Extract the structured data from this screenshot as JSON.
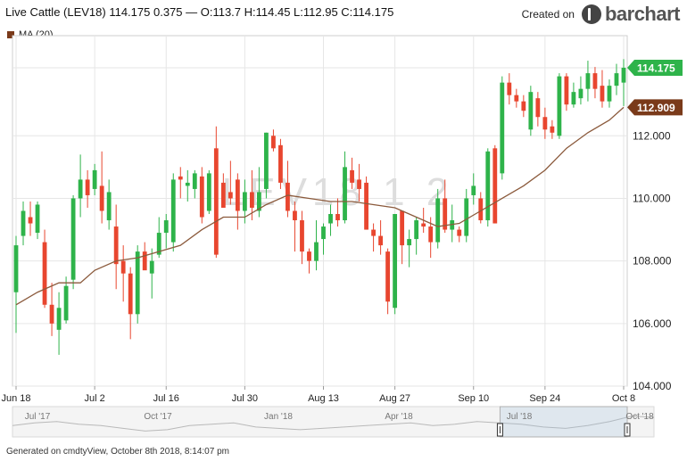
{
  "header": {
    "title": "Live Cattle (LEV18) 114.175 0.375 — O:113.7 H:114.45 L:112.95 C:114.175",
    "brand_prefix": "Created on",
    "brand_name": "barchart"
  },
  "legend": {
    "label": "MA (20)",
    "color": "#7a3a1a"
  },
  "watermark": "LEV18 1 2",
  "footer": "Generated on cmdtyView, October 8th 2018, 8:14:07 pm",
  "colors": {
    "up": "#2eb34a",
    "down": "#e8462f",
    "ma": "#8b5a3c",
    "grid": "#e6e6e6"
  },
  "chart_data": {
    "type": "candlestick",
    "x_ticks": [
      "Jun 18",
      "Jul 2",
      "Jul 16",
      "Jul 30",
      "Aug 13",
      "Aug 27",
      "Sep 10",
      "Sep 24",
      "Oct 8"
    ],
    "y_ticks": [
      "104.000",
      "106.000",
      "108.000",
      "110.000",
      "112.000",
      "114.175"
    ],
    "ylim": [
      104,
      115.2
    ],
    "price_labels": [
      {
        "value": 114.175,
        "text": "114.175",
        "color": "#2eb34a"
      },
      {
        "value": 112.909,
        "text": "112.909",
        "color": "#7a3a1a"
      }
    ],
    "candles": [
      {
        "o": 107.0,
        "h": 108.8,
        "l": 105.7,
        "c": 108.5
      },
      {
        "o": 108.8,
        "h": 109.9,
        "l": 108.5,
        "c": 109.6
      },
      {
        "o": 109.4,
        "h": 109.9,
        "l": 108.8,
        "c": 109.2
      },
      {
        "o": 108.9,
        "h": 109.9,
        "l": 108.7,
        "c": 109.8
      },
      {
        "o": 108.6,
        "h": 109.0,
        "l": 106.5,
        "c": 106.6
      },
      {
        "o": 106.6,
        "h": 107.3,
        "l": 105.6,
        "c": 106.0
      },
      {
        "o": 105.8,
        "h": 107.0,
        "l": 105.0,
        "c": 106.5
      },
      {
        "o": 106.1,
        "h": 107.5,
        "l": 106.0,
        "c": 107.2
      },
      {
        "o": 107.4,
        "h": 110.1,
        "l": 107.1,
        "c": 110.0
      },
      {
        "o": 110.0,
        "h": 111.4,
        "l": 109.4,
        "c": 110.6
      },
      {
        "o": 110.6,
        "h": 110.9,
        "l": 109.7,
        "c": 110.1
      },
      {
        "o": 110.3,
        "h": 111.1,
        "l": 110.1,
        "c": 110.9
      },
      {
        "o": 110.4,
        "h": 111.5,
        "l": 109.2,
        "c": 109.6
      },
      {
        "o": 109.3,
        "h": 110.6,
        "l": 109.0,
        "c": 110.2
      },
      {
        "o": 109.1,
        "h": 109.8,
        "l": 107.1,
        "c": 107.9
      },
      {
        "o": 108.0,
        "h": 108.5,
        "l": 106.7,
        "c": 107.6
      },
      {
        "o": 107.6,
        "h": 107.8,
        "l": 105.5,
        "c": 106.3
      },
      {
        "o": 106.3,
        "h": 108.5,
        "l": 106.0,
        "c": 108.3
      },
      {
        "o": 108.3,
        "h": 108.6,
        "l": 107.8,
        "c": 107.7
      },
      {
        "o": 107.6,
        "h": 108.4,
        "l": 106.8,
        "c": 108.0
      },
      {
        "o": 108.2,
        "h": 109.4,
        "l": 108.1,
        "c": 108.9
      },
      {
        "o": 108.9,
        "h": 109.5,
        "l": 108.4,
        "c": 109.3
      },
      {
        "o": 108.6,
        "h": 110.8,
        "l": 108.3,
        "c": 110.6
      },
      {
        "o": 110.7,
        "h": 111.0,
        "l": 110.0,
        "c": 110.6
      },
      {
        "o": 110.4,
        "h": 110.9,
        "l": 109.9,
        "c": 110.5
      },
      {
        "o": 110.3,
        "h": 110.9,
        "l": 110.0,
        "c": 110.8
      },
      {
        "o": 110.7,
        "h": 111.0,
        "l": 109.2,
        "c": 109.4
      },
      {
        "o": 109.6,
        "h": 110.9,
        "l": 109.5,
        "c": 110.8
      },
      {
        "o": 111.6,
        "h": 112.3,
        "l": 108.1,
        "c": 108.2
      },
      {
        "o": 110.5,
        "h": 110.8,
        "l": 109.8,
        "c": 109.7
      },
      {
        "o": 110.2,
        "h": 111.2,
        "l": 109.8,
        "c": 110.0
      },
      {
        "o": 110.6,
        "h": 110.8,
        "l": 109.0,
        "c": 109.6
      },
      {
        "o": 109.6,
        "h": 110.6,
        "l": 109.2,
        "c": 110.2
      },
      {
        "o": 110.2,
        "h": 110.9,
        "l": 109.3,
        "c": 109.7
      },
      {
        "o": 109.6,
        "h": 111.0,
        "l": 109.4,
        "c": 110.2
      },
      {
        "o": 110.3,
        "h": 112.1,
        "l": 110.0,
        "c": 112.1
      },
      {
        "o": 112.0,
        "h": 112.2,
        "l": 111.5,
        "c": 111.6
      },
      {
        "o": 111.7,
        "h": 111.9,
        "l": 110.3,
        "c": 110.5
      },
      {
        "o": 110.5,
        "h": 111.2,
        "l": 109.4,
        "c": 109.6
      },
      {
        "o": 109.6,
        "h": 109.9,
        "l": 108.3,
        "c": 109.3
      },
      {
        "o": 109.3,
        "h": 109.6,
        "l": 107.9,
        "c": 108.3
      },
      {
        "o": 108.3,
        "h": 108.4,
        "l": 107.6,
        "c": 108.0
      },
      {
        "o": 108.0,
        "h": 109.3,
        "l": 107.7,
        "c": 108.6
      },
      {
        "o": 108.7,
        "h": 109.2,
        "l": 108.2,
        "c": 109.1
      },
      {
        "o": 109.2,
        "h": 109.8,
        "l": 108.8,
        "c": 109.5
      },
      {
        "o": 109.5,
        "h": 110.0,
        "l": 109.1,
        "c": 109.3
      },
      {
        "o": 109.3,
        "h": 111.5,
        "l": 109.2,
        "c": 111.0
      },
      {
        "o": 110.9,
        "h": 111.3,
        "l": 110.3,
        "c": 110.5
      },
      {
        "o": 110.6,
        "h": 111.1,
        "l": 109.9,
        "c": 110.3
      },
      {
        "o": 110.5,
        "h": 110.7,
        "l": 109.0,
        "c": 109.0
      },
      {
        "o": 109.0,
        "h": 109.2,
        "l": 108.3,
        "c": 108.8
      },
      {
        "o": 108.8,
        "h": 109.3,
        "l": 108.2,
        "c": 108.5
      },
      {
        "o": 108.3,
        "h": 108.4,
        "l": 106.3,
        "c": 106.7
      },
      {
        "o": 106.5,
        "h": 109.5,
        "l": 106.3,
        "c": 109.5
      },
      {
        "o": 109.6,
        "h": 109.6,
        "l": 107.9,
        "c": 108.5
      },
      {
        "o": 108.5,
        "h": 109.0,
        "l": 107.8,
        "c": 108.7
      },
      {
        "o": 108.7,
        "h": 109.4,
        "l": 108.2,
        "c": 109.3
      },
      {
        "o": 109.2,
        "h": 109.7,
        "l": 108.9,
        "c": 109.1
      },
      {
        "o": 109.1,
        "h": 109.4,
        "l": 108.1,
        "c": 108.6
      },
      {
        "o": 108.6,
        "h": 110.3,
        "l": 108.4,
        "c": 110.0
      },
      {
        "o": 110.0,
        "h": 110.6,
        "l": 108.9,
        "c": 109.0
      },
      {
        "o": 109.0,
        "h": 109.8,
        "l": 108.6,
        "c": 109.3
      },
      {
        "o": 109.0,
        "h": 109.1,
        "l": 108.6,
        "c": 108.8
      },
      {
        "o": 108.8,
        "h": 110.3,
        "l": 108.6,
        "c": 110.0
      },
      {
        "o": 110.1,
        "h": 110.8,
        "l": 109.8,
        "c": 110.4
      },
      {
        "o": 110.0,
        "h": 110.2,
        "l": 109.2,
        "c": 109.3
      },
      {
        "o": 109.3,
        "h": 111.6,
        "l": 109.1,
        "c": 111.5
      },
      {
        "o": 111.6,
        "h": 111.7,
        "l": 109.2,
        "c": 109.2
      },
      {
        "o": 110.8,
        "h": 113.9,
        "l": 110.6,
        "c": 113.7
      },
      {
        "o": 113.7,
        "h": 114.0,
        "l": 113.0,
        "c": 113.3
      },
      {
        "o": 113.3,
        "h": 113.5,
        "l": 112.9,
        "c": 113.1
      },
      {
        "o": 113.1,
        "h": 113.3,
        "l": 112.6,
        "c": 112.8
      },
      {
        "o": 112.2,
        "h": 113.6,
        "l": 112.0,
        "c": 113.4
      },
      {
        "o": 113.2,
        "h": 113.4,
        "l": 112.3,
        "c": 112.6
      },
      {
        "o": 112.6,
        "h": 112.9,
        "l": 111.9,
        "c": 112.2
      },
      {
        "o": 112.3,
        "h": 112.5,
        "l": 111.9,
        "c": 112.1
      },
      {
        "o": 112.0,
        "h": 114.0,
        "l": 111.9,
        "c": 113.9
      },
      {
        "o": 113.9,
        "h": 114.0,
        "l": 112.8,
        "c": 113.0
      },
      {
        "o": 113.0,
        "h": 113.7,
        "l": 112.9,
        "c": 113.4
      },
      {
        "o": 113.2,
        "h": 113.9,
        "l": 113.0,
        "c": 113.5
      },
      {
        "o": 113.5,
        "h": 114.4,
        "l": 113.1,
        "c": 114.0
      },
      {
        "o": 114.0,
        "h": 114.2,
        "l": 113.2,
        "c": 113.5
      },
      {
        "o": 113.6,
        "h": 114.1,
        "l": 112.9,
        "c": 113.1
      },
      {
        "o": 113.1,
        "h": 113.8,
        "l": 112.9,
        "c": 113.6
      },
      {
        "o": 113.6,
        "h": 114.3,
        "l": 113.3,
        "c": 114.0
      },
      {
        "o": 113.7,
        "h": 114.45,
        "l": 112.95,
        "c": 114.175
      }
    ],
    "ma_label": "MA (20)",
    "ma": [
      {
        "i": 0,
        "v": 106.6
      },
      {
        "i": 3,
        "v": 107.0
      },
      {
        "i": 6,
        "v": 107.3
      },
      {
        "i": 9,
        "v": 107.3
      },
      {
        "i": 11,
        "v": 107.7
      },
      {
        "i": 14,
        "v": 108.0
      },
      {
        "i": 17,
        "v": 108.1
      },
      {
        "i": 20,
        "v": 108.3
      },
      {
        "i": 23,
        "v": 108.5
      },
      {
        "i": 26,
        "v": 109.0
      },
      {
        "i": 29,
        "v": 109.4
      },
      {
        "i": 32,
        "v": 109.4
      },
      {
        "i": 35,
        "v": 109.8
      },
      {
        "i": 38,
        "v": 110.1
      },
      {
        "i": 41,
        "v": 110.0
      },
      {
        "i": 44,
        "v": 109.9
      },
      {
        "i": 47,
        "v": 109.9
      },
      {
        "i": 50,
        "v": 109.8
      },
      {
        "i": 53,
        "v": 109.7
      },
      {
        "i": 56,
        "v": 109.4
      },
      {
        "i": 59,
        "v": 109.1
      },
      {
        "i": 62,
        "v": 109.2
      },
      {
        "i": 65,
        "v": 109.6
      },
      {
        "i": 68,
        "v": 110.0
      },
      {
        "i": 71,
        "v": 110.4
      },
      {
        "i": 74,
        "v": 110.9
      },
      {
        "i": 77,
        "v": 111.6
      },
      {
        "i": 80,
        "v": 112.1
      },
      {
        "i": 83,
        "v": 112.5
      },
      {
        "i": 85,
        "v": 112.909
      }
    ],
    "navigator": {
      "labels": [
        "Jul '17",
        "Oct '17",
        "Jan '18",
        "Apr '18",
        "Jul '18",
        "Oct '18"
      ],
      "series": [
        104.6,
        104.8,
        104.9,
        104.7,
        104.6,
        104.4,
        104.2,
        104.3,
        104.6,
        104.7,
        104.8,
        104.5,
        104.4,
        104.3,
        104.4,
        104.5,
        104.6,
        104.7,
        104.8,
        104.6,
        104.7,
        104.9,
        104.8,
        104.7,
        104.5,
        104.4,
        104.6,
        104.9,
        105.3,
        105.2
      ]
    }
  }
}
